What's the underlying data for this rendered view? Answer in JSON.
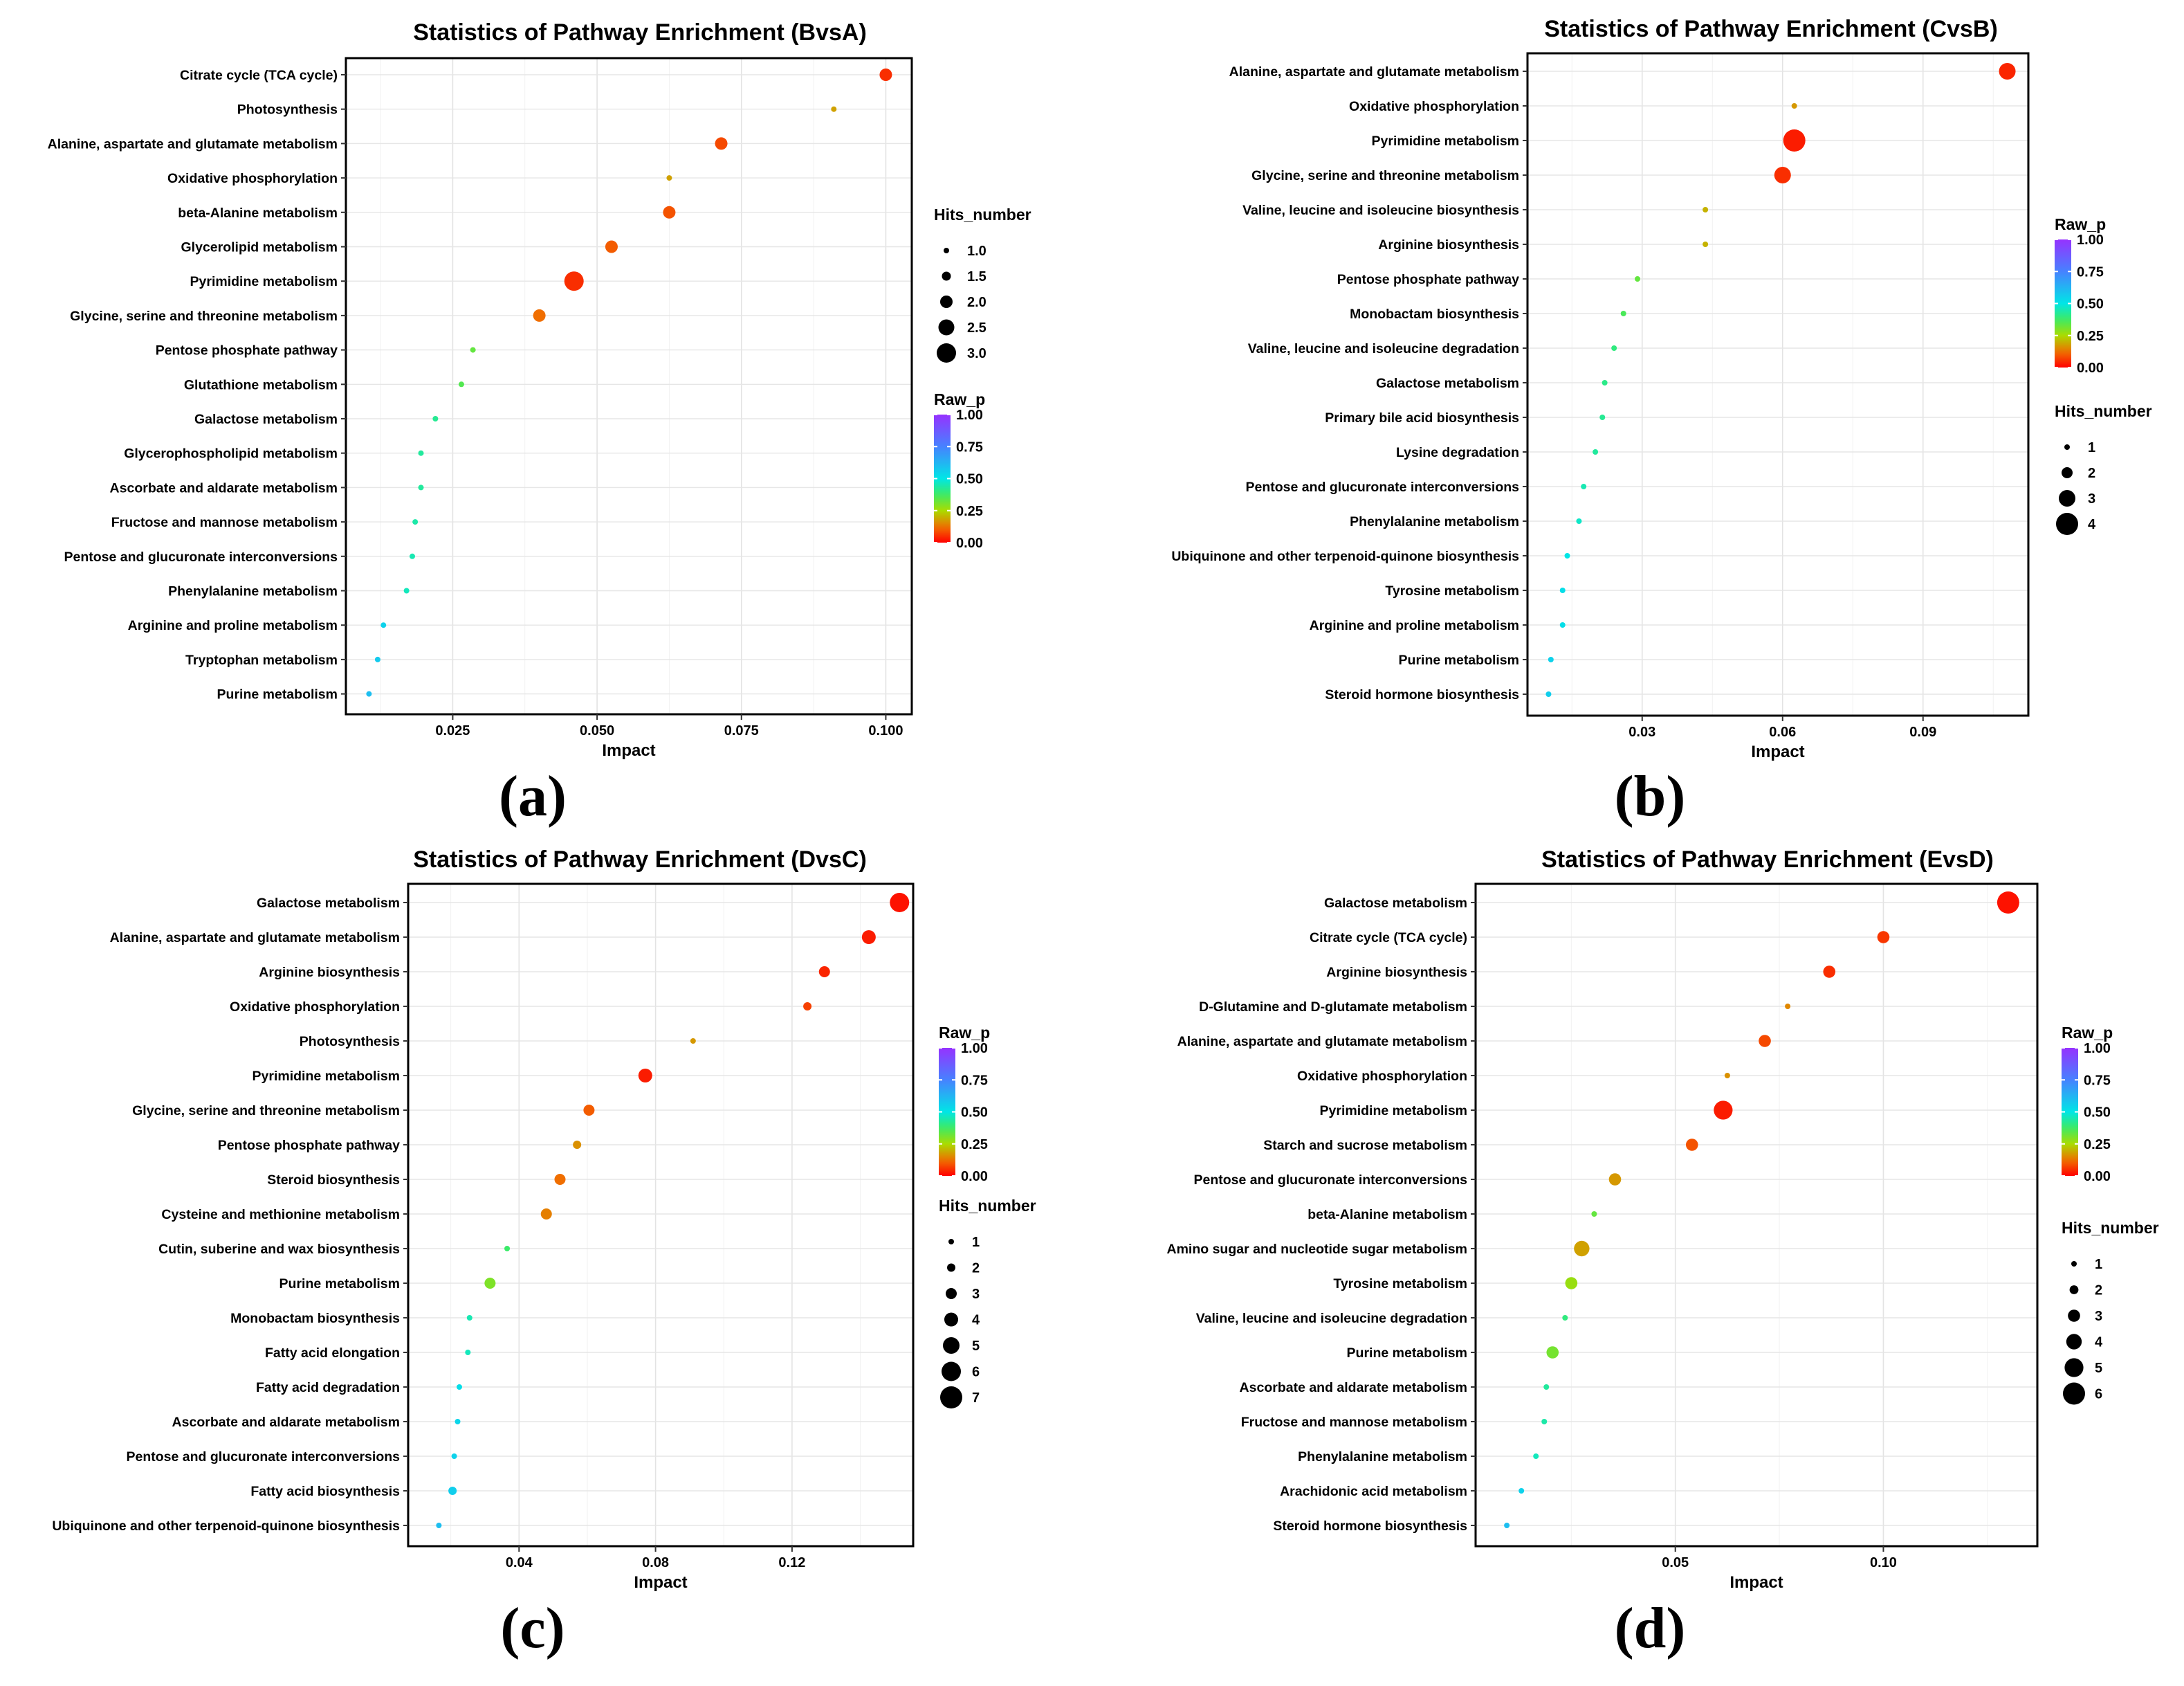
{
  "chart_data": [
    {
      "type": "scatter",
      "panel": "(a)",
      "title": "Statistics of Pathway Enrichment (BvsA)",
      "xlabel": "Impact",
      "xlim": [
        0.0065,
        0.1045
      ],
      "xticks": [
        0.025,
        0.05,
        0.075,
        0.1
      ],
      "xtick_labels": [
        "0.025",
        "0.050",
        "0.075",
        "0.100"
      ],
      "legend_order": [
        "hits",
        "rawp"
      ],
      "size_legend": {
        "title": "Hits_number",
        "values": [
          1.0,
          1.5,
          2.0,
          2.5,
          3.0
        ],
        "labels": [
          "1.0",
          "1.5",
          "2.0",
          "2.5",
          "3.0"
        ]
      },
      "color_legend": {
        "title": "Raw_p",
        "ticks": [
          0,
          0.25,
          0.5,
          0.75,
          1.0
        ],
        "labels": [
          "0.00",
          "0.25",
          "0.50",
          "0.75",
          "1.00"
        ]
      },
      "points": [
        {
          "pathway": "Citrate cycle (TCA cycle)",
          "impact": 0.1,
          "hits": 2,
          "raw_p": 0.05
        },
        {
          "pathway": "Photosynthesis",
          "impact": 0.091,
          "hits": 1,
          "raw_p": 0.18
        },
        {
          "pathway": "Alanine, aspartate and glutamate metabolism",
          "impact": 0.0715,
          "hits": 2,
          "raw_p": 0.08
        },
        {
          "pathway": "Oxidative phosphorylation",
          "impact": 0.0625,
          "hits": 1,
          "raw_p": 0.18
        },
        {
          "pathway": "beta-Alanine metabolism",
          "impact": 0.0625,
          "hits": 2,
          "raw_p": 0.09
        },
        {
          "pathway": "Glycerolipid metabolism",
          "impact": 0.0525,
          "hits": 2,
          "raw_p": 0.1
        },
        {
          "pathway": "Pyrimidine metabolism",
          "impact": 0.046,
          "hits": 3,
          "raw_p": 0.05
        },
        {
          "pathway": "Glycine, serine and threonine metabolism",
          "impact": 0.04,
          "hits": 2,
          "raw_p": 0.12
        },
        {
          "pathway": "Pentose phosphate pathway",
          "impact": 0.0285,
          "hits": 1,
          "raw_p": 0.33
        },
        {
          "pathway": "Glutathione metabolism",
          "impact": 0.0265,
          "hits": 1,
          "raw_p": 0.35
        },
        {
          "pathway": "Galactose metabolism",
          "impact": 0.022,
          "hits": 1,
          "raw_p": 0.42
        },
        {
          "pathway": "Glycerophospholipid metabolism",
          "impact": 0.0195,
          "hits": 1,
          "raw_p": 0.43
        },
        {
          "pathway": "Ascorbate and aldarate metabolism",
          "impact": 0.0195,
          "hits": 1,
          "raw_p": 0.43
        },
        {
          "pathway": "Fructose and mannose metabolism",
          "impact": 0.0185,
          "hits": 1,
          "raw_p": 0.44
        },
        {
          "pathway": "Pentose and glucuronate interconversions",
          "impact": 0.018,
          "hits": 1,
          "raw_p": 0.45
        },
        {
          "pathway": "Phenylalanine metabolism",
          "impact": 0.017,
          "hits": 1,
          "raw_p": 0.46
        },
        {
          "pathway": "Arginine and proline metabolism",
          "impact": 0.013,
          "hits": 1,
          "raw_p": 0.55
        },
        {
          "pathway": "Tryptophan metabolism",
          "impact": 0.012,
          "hits": 1,
          "raw_p": 0.57
        },
        {
          "pathway": "Purine metabolism",
          "impact": 0.0105,
          "hits": 1,
          "raw_p": 0.6
        }
      ]
    },
    {
      "type": "scatter",
      "panel": "(b)",
      "title": "Statistics of Pathway Enrichment (CvsB)",
      "xlabel": "Impact",
      "xlim": [
        0.0055,
        0.1125
      ],
      "xticks": [
        0.03,
        0.06,
        0.09
      ],
      "xtick_labels": [
        "0.03",
        "0.06",
        "0.09"
      ],
      "legend_order": [
        "rawp",
        "hits"
      ],
      "size_legend": {
        "title": "Hits_number",
        "values": [
          1,
          2,
          3,
          4
        ],
        "labels": [
          "1",
          "2",
          "3",
          "4"
        ]
      },
      "color_legend": {
        "title": "Raw_p",
        "ticks": [
          0,
          0.25,
          0.5,
          0.75,
          1.0
        ],
        "labels": [
          "0.00",
          "0.25",
          "0.50",
          "0.75",
          "1.00"
        ]
      },
      "points": [
        {
          "pathway": "Alanine, aspartate and glutamate metabolism",
          "impact": 0.108,
          "hits": 3,
          "raw_p": 0.04
        },
        {
          "pathway": "Oxidative phosphorylation",
          "impact": 0.0625,
          "hits": 1,
          "raw_p": 0.17
        },
        {
          "pathway": "Pyrimidine metabolism",
          "impact": 0.0625,
          "hits": 4,
          "raw_p": 0.03
        },
        {
          "pathway": "Glycine, serine and threonine metabolism",
          "impact": 0.06,
          "hits": 3,
          "raw_p": 0.05
        },
        {
          "pathway": "Valine, leucine and isoleucine biosynthesis",
          "impact": 0.0435,
          "hits": 1,
          "raw_p": 0.2
        },
        {
          "pathway": "Arginine biosynthesis",
          "impact": 0.0435,
          "hits": 1,
          "raw_p": 0.2
        },
        {
          "pathway": "Pentose phosphate pathway",
          "impact": 0.029,
          "hits": 1,
          "raw_p": 0.33
        },
        {
          "pathway": "Monobactam biosynthesis",
          "impact": 0.026,
          "hits": 1,
          "raw_p": 0.36
        },
        {
          "pathway": "Valine, leucine and isoleucine degradation",
          "impact": 0.024,
          "hits": 1,
          "raw_p": 0.4
        },
        {
          "pathway": "Galactose metabolism",
          "impact": 0.022,
          "hits": 1,
          "raw_p": 0.41
        },
        {
          "pathway": "Primary bile acid biosynthesis",
          "impact": 0.0215,
          "hits": 1,
          "raw_p": 0.42
        },
        {
          "pathway": "Lysine degradation",
          "impact": 0.02,
          "hits": 1,
          "raw_p": 0.43
        },
        {
          "pathway": "Pentose and glucuronate interconversions",
          "impact": 0.0175,
          "hits": 1,
          "raw_p": 0.45
        },
        {
          "pathway": "Phenylalanine metabolism",
          "impact": 0.0165,
          "hits": 1,
          "raw_p": 0.47
        },
        {
          "pathway": "Ubiquinone and other terpenoid-quinone biosynthesis",
          "impact": 0.014,
          "hits": 1,
          "raw_p": 0.5
        },
        {
          "pathway": "Tyrosine metabolism",
          "impact": 0.013,
          "hits": 1,
          "raw_p": 0.52
        },
        {
          "pathway": "Arginine and proline metabolism",
          "impact": 0.013,
          "hits": 1,
          "raw_p": 0.52
        },
        {
          "pathway": "Purine metabolism",
          "impact": 0.0105,
          "hits": 1,
          "raw_p": 0.55
        },
        {
          "pathway": "Steroid hormone biosynthesis",
          "impact": 0.01,
          "hits": 1,
          "raw_p": 0.56
        }
      ]
    },
    {
      "type": "scatter",
      "panel": "(c)",
      "title": "Statistics of Pathway Enrichment (DvsC)",
      "xlabel": "Impact",
      "xlim": [
        0.0075,
        0.1555
      ],
      "xticks": [
        0.04,
        0.08,
        0.12
      ],
      "xtick_labels": [
        "0.04",
        "0.08",
        "0.12"
      ],
      "legend_order": [
        "rawp",
        "hits"
      ],
      "size_legend": {
        "title": "Hits_number",
        "values": [
          1,
          2,
          3,
          4,
          5,
          6,
          7
        ],
        "labels": [
          "1",
          "2",
          "3",
          "4",
          "5",
          "6",
          "7"
        ]
      },
      "color_legend": {
        "title": "Raw_p",
        "ticks": [
          0,
          0.25,
          0.5,
          0.75,
          1.0
        ],
        "labels": [
          "0.00",
          "0.25",
          "0.50",
          "0.75",
          "1.00"
        ]
      },
      "points": [
        {
          "pathway": "Galactose metabolism",
          "impact": 0.1515,
          "hits": 6,
          "raw_p": 0.02
        },
        {
          "pathway": "Alanine, aspartate and glutamate metabolism",
          "impact": 0.1425,
          "hits": 4,
          "raw_p": 0.03
        },
        {
          "pathway": "Arginine biosynthesis",
          "impact": 0.1295,
          "hits": 3,
          "raw_p": 0.04
        },
        {
          "pathway": "Oxidative phosphorylation",
          "impact": 0.1245,
          "hits": 2,
          "raw_p": 0.07
        },
        {
          "pathway": "Photosynthesis",
          "impact": 0.091,
          "hits": 1,
          "raw_p": 0.17
        },
        {
          "pathway": "Pyrimidine metabolism",
          "impact": 0.077,
          "hits": 4,
          "raw_p": 0.03
        },
        {
          "pathway": "Glycine, serine and threonine metabolism",
          "impact": 0.0605,
          "hits": 3,
          "raw_p": 0.1
        },
        {
          "pathway": "Pentose phosphate pathway",
          "impact": 0.057,
          "hits": 2,
          "raw_p": 0.16
        },
        {
          "pathway": "Steroid biosynthesis",
          "impact": 0.052,
          "hits": 3,
          "raw_p": 0.12
        },
        {
          "pathway": "Cysteine and methionine metabolism",
          "impact": 0.048,
          "hits": 3,
          "raw_p": 0.14
        },
        {
          "pathway": "Cutin, suberine and wax biosynthesis",
          "impact": 0.0365,
          "hits": 1,
          "raw_p": 0.38
        },
        {
          "pathway": "Purine metabolism",
          "impact": 0.0315,
          "hits": 3,
          "raw_p": 0.3
        },
        {
          "pathway": "Monobactam biosynthesis",
          "impact": 0.0255,
          "hits": 1,
          "raw_p": 0.45
        },
        {
          "pathway": "Fatty acid elongation",
          "impact": 0.025,
          "hits": 1,
          "raw_p": 0.46
        },
        {
          "pathway": "Fatty acid degradation",
          "impact": 0.0225,
          "hits": 1,
          "raw_p": 0.52
        },
        {
          "pathway": "Ascorbate and aldarate metabolism",
          "impact": 0.022,
          "hits": 1,
          "raw_p": 0.54
        },
        {
          "pathway": "Pentose and glucuronate interconversions",
          "impact": 0.021,
          "hits": 1,
          "raw_p": 0.55
        },
        {
          "pathway": "Fatty acid biosynthesis",
          "impact": 0.0205,
          "hits": 2,
          "raw_p": 0.56
        },
        {
          "pathway": "Ubiquinone and other terpenoid-quinone biosynthesis",
          "impact": 0.0165,
          "hits": 1,
          "raw_p": 0.6
        }
      ]
    },
    {
      "type": "scatter",
      "panel": "(d)",
      "title": "Statistics of Pathway Enrichment (EvsD)",
      "xlabel": "Impact",
      "xlim": [
        0.002,
        0.137
      ],
      "xticks": [
        0.05,
        0.1
      ],
      "xtick_labels": [
        "0.05",
        "0.10"
      ],
      "legend_order": [
        "rawp",
        "hits"
      ],
      "size_legend": {
        "title": "Hits_number",
        "values": [
          1,
          2,
          3,
          4,
          5,
          6
        ],
        "labels": [
          "1",
          "2",
          "3",
          "4",
          "5",
          "6"
        ]
      },
      "color_legend": {
        "title": "Raw_p",
        "ticks": [
          0,
          0.25,
          0.5,
          0.75,
          1.0
        ],
        "labels": [
          "0.00",
          "0.25",
          "0.50",
          "0.75",
          "1.00"
        ]
      },
      "points": [
        {
          "pathway": "Galactose metabolism",
          "impact": 0.13,
          "hits": 6,
          "raw_p": 0.02
        },
        {
          "pathway": "Citrate cycle (TCA cycle)",
          "impact": 0.1,
          "hits": 3,
          "raw_p": 0.06
        },
        {
          "pathway": "Arginine biosynthesis",
          "impact": 0.087,
          "hits": 3,
          "raw_p": 0.05
        },
        {
          "pathway": "D-Glutamine and D-glutamate metabolism",
          "impact": 0.077,
          "hits": 1,
          "raw_p": 0.15
        },
        {
          "pathway": "Alanine, aspartate and glutamate metabolism",
          "impact": 0.0715,
          "hits": 3,
          "raw_p": 0.08
        },
        {
          "pathway": "Oxidative phosphorylation",
          "impact": 0.0625,
          "hits": 1,
          "raw_p": 0.16
        },
        {
          "pathway": "Pyrimidine metabolism",
          "impact": 0.0615,
          "hits": 5,
          "raw_p": 0.03
        },
        {
          "pathway": "Starch and sucrose metabolism",
          "impact": 0.054,
          "hits": 3,
          "raw_p": 0.09
        },
        {
          "pathway": "Pentose and glucuronate interconversions",
          "impact": 0.0355,
          "hits": 3,
          "raw_p": 0.17
        },
        {
          "pathway": "beta-Alanine metabolism",
          "impact": 0.0305,
          "hits": 1,
          "raw_p": 0.33
        },
        {
          "pathway": "Amino sugar and nucleotide sugar metabolism",
          "impact": 0.0275,
          "hits": 4,
          "raw_p": 0.18
        },
        {
          "pathway": "Tyrosine metabolism",
          "impact": 0.025,
          "hits": 3,
          "raw_p": 0.27
        },
        {
          "pathway": "Valine, leucine and isoleucine degradation",
          "impact": 0.0235,
          "hits": 1,
          "raw_p": 0.4
        },
        {
          "pathway": "Purine metabolism",
          "impact": 0.0205,
          "hits": 3,
          "raw_p": 0.31
        },
        {
          "pathway": "Ascorbate and aldarate metabolism",
          "impact": 0.019,
          "hits": 1,
          "raw_p": 0.43
        },
        {
          "pathway": "Fructose and mannose metabolism",
          "impact": 0.0185,
          "hits": 1,
          "raw_p": 0.44
        },
        {
          "pathway": "Phenylalanine metabolism",
          "impact": 0.0165,
          "hits": 1,
          "raw_p": 0.46
        },
        {
          "pathway": "Arachidonic acid metabolism",
          "impact": 0.013,
          "hits": 1,
          "raw_p": 0.55
        },
        {
          "pathway": "Steroid hormone biosynthesis",
          "impact": 0.0095,
          "hits": 1,
          "raw_p": 0.6
        }
      ]
    }
  ],
  "panel_letters": [
    "(a)",
    "(b)",
    "(c)",
    "(d)"
  ]
}
